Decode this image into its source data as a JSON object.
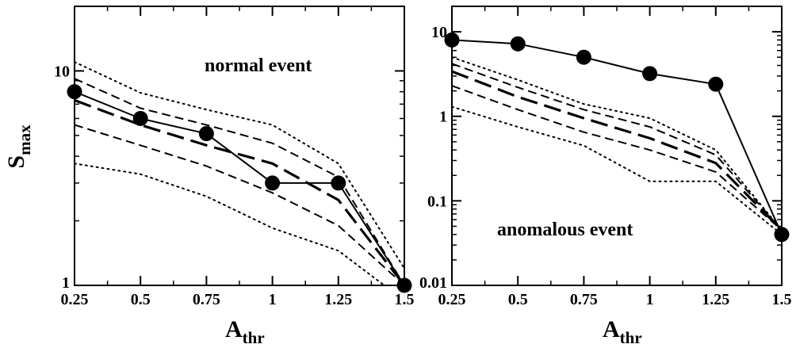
{
  "chart_data": [
    {
      "type": "line",
      "panel": "left",
      "annotation": "normal event",
      "xlabel": "A",
      "xlabel_sub": "thr",
      "ylabel": "S",
      "ylabel_sub": "max",
      "xlim": [
        0.25,
        1.5
      ],
      "ylim": [
        1,
        20
      ],
      "yscale": "log",
      "x_ticks": [
        "0.25",
        "0.5",
        "0.75",
        "1",
        "1.25",
        "1.5"
      ],
      "y_ticks": [
        "1",
        "10"
      ],
      "x": [
        0.25,
        0.5,
        0.75,
        1.0,
        1.25,
        1.5
      ],
      "series": [
        {
          "style": "solid-markers",
          "values": [
            8.0,
            6.0,
            5.1,
            3.0,
            3.0,
            1.0
          ]
        },
        {
          "style": "long-dash",
          "values": [
            7.3,
            5.6,
            4.5,
            3.7,
            2.5,
            1.0
          ]
        },
        {
          "style": "dash",
          "values": [
            9.2,
            6.7,
            5.6,
            4.6,
            3.2,
            1.0
          ]
        },
        {
          "style": "dash",
          "values": [
            5.6,
            4.5,
            3.6,
            2.7,
            1.9,
            1.0
          ]
        },
        {
          "style": "dot",
          "values": [
            11.0,
            7.9,
            6.6,
            5.6,
            3.7,
            1.2
          ]
        },
        {
          "style": "dot",
          "values": [
            3.7,
            3.3,
            2.6,
            1.85,
            1.45,
            0.85
          ]
        }
      ]
    },
    {
      "type": "line",
      "panel": "right",
      "annotation": "anomalous event",
      "xlabel": "A",
      "xlabel_sub": "thr",
      "xlim": [
        0.25,
        1.5
      ],
      "ylim": [
        0.01,
        20
      ],
      "yscale": "log",
      "x_ticks": [
        "0.25",
        "0.5",
        "0.75",
        "1",
        "1.25",
        "1.5"
      ],
      "y_ticks": [
        "0.01",
        "0.1",
        "1",
        "10"
      ],
      "x": [
        0.25,
        0.5,
        0.75,
        1.0,
        1.25,
        1.5
      ],
      "series": [
        {
          "style": "solid-markers",
          "values": [
            8.0,
            7.2,
            5.0,
            3.2,
            2.4,
            0.04
          ]
        },
        {
          "style": "long-dash",
          "values": [
            3.4,
            1.7,
            0.95,
            0.55,
            0.28,
            0.045
          ]
        },
        {
          "style": "dash",
          "values": [
            4.2,
            2.2,
            1.2,
            0.75,
            0.35,
            0.045
          ]
        },
        {
          "style": "dash",
          "values": [
            2.3,
            1.2,
            0.65,
            0.4,
            0.22,
            0.045
          ]
        },
        {
          "style": "dot",
          "values": [
            5.0,
            2.7,
            1.4,
            0.95,
            0.4,
            0.045
          ]
        },
        {
          "style": "dot",
          "values": [
            1.3,
            0.75,
            0.45,
            0.17,
            0.17,
            0.04
          ]
        }
      ]
    }
  ]
}
